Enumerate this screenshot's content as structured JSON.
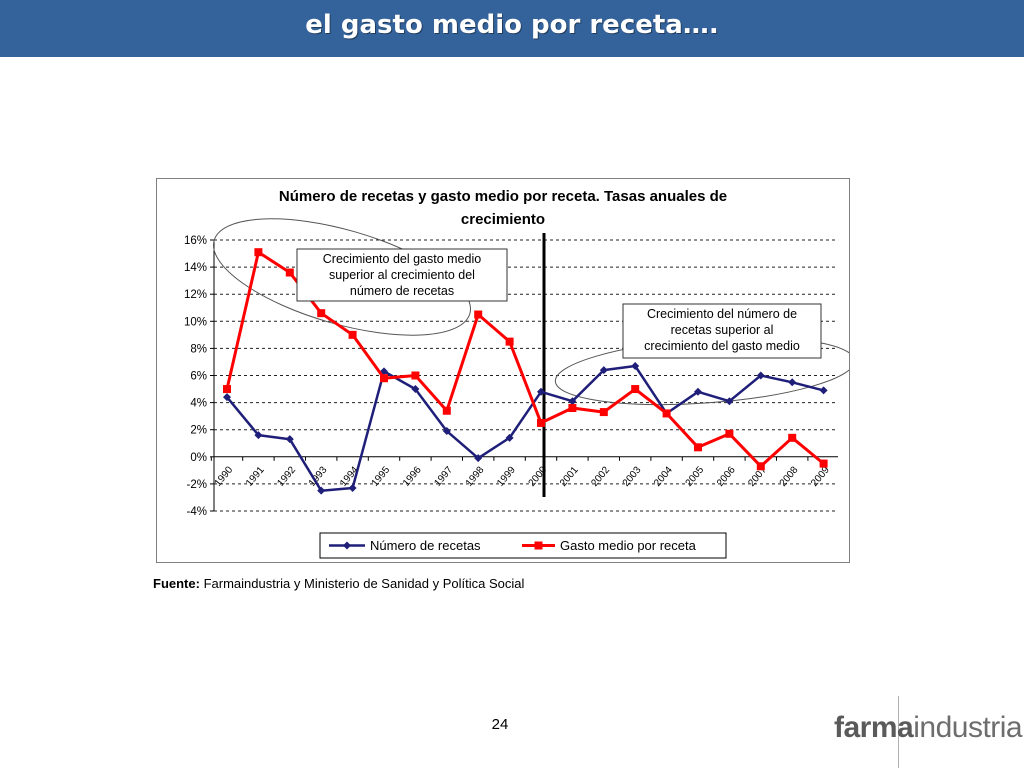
{
  "slide": {
    "title": "el gasto medio por receta….",
    "source_label": "Fuente:",
    "source_text": "Farmaindustria y Ministerio de Sanidad y Política Social",
    "page_number": "24",
    "logo_bold": "farma",
    "logo_light": "industria"
  },
  "colors": {
    "title_bar": "#34629b",
    "series_recetas": "#1f1f7a",
    "series_gasto": "#ff0000"
  },
  "chart_data": {
    "type": "line",
    "title": "Número de recetas y gasto medio por receta. Tasas anuales de crecimiento",
    "title_line1": "Número de recetas y gasto medio por receta. Tasas anuales de",
    "title_line2": "crecimiento",
    "x": [
      "1990",
      "1991",
      "1992",
      "1993",
      "1994",
      "1995",
      "1996",
      "1997",
      "1998",
      "1999",
      "2000",
      "2001",
      "2002",
      "2003",
      "2004",
      "2005",
      "2006",
      "2007",
      "2008",
      "2009"
    ],
    "series": [
      {
        "name": "Número de recetas",
        "color": "#1f1f7a",
        "marker": "diamond",
        "values": [
          4.4,
          1.6,
          1.3,
          -2.5,
          -2.3,
          6.3,
          5.0,
          1.9,
          -0.1,
          1.4,
          4.8,
          4.1,
          6.4,
          6.7,
          3.2,
          4.8,
          4.1,
          6.0,
          5.5,
          4.9
        ]
      },
      {
        "name": "Gasto medio por receta",
        "color": "#ff0000",
        "marker": "square",
        "values": [
          5.0,
          15.1,
          13.6,
          10.6,
          9.0,
          5.8,
          6.0,
          3.4,
          10.5,
          8.5,
          2.5,
          3.6,
          3.3,
          5.0,
          3.2,
          0.7,
          1.7,
          -0.7,
          1.4,
          -0.5
        ]
      }
    ],
    "ylim": [
      -4,
      16
    ],
    "y_ticks": [
      16,
      14,
      12,
      10,
      8,
      6,
      4,
      2,
      0,
      -2,
      -4
    ],
    "y_tick_labels": [
      "16%",
      "14%",
      "12%",
      "10%",
      "8%",
      "6%",
      "4%",
      "2%",
      "0%",
      "-2%",
      "-4%"
    ],
    "grid": true,
    "legend": "bottom",
    "divider_after": "2000",
    "annotations": [
      {
        "lines": [
          "Crecimiento del gasto medio",
          "superior al crecimiento del",
          "número de recetas"
        ]
      },
      {
        "lines": [
          "Crecimiento del número de",
          "recetas superior al",
          "crecimiento del gasto medio"
        ]
      }
    ]
  }
}
